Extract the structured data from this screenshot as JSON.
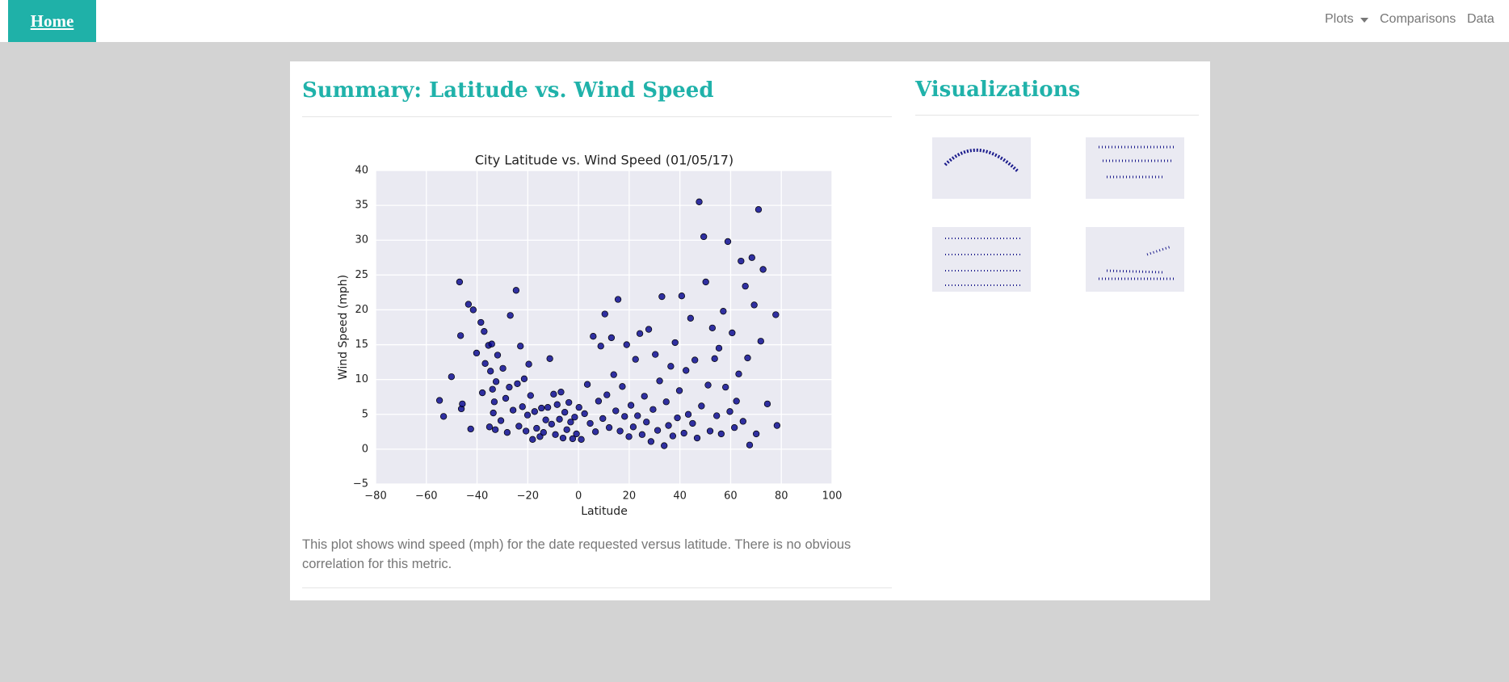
{
  "nav": {
    "brand": "Home",
    "links": [
      "Plots",
      "Comparisons",
      "Data"
    ]
  },
  "summary": {
    "heading": "Summary: Latitude vs. Wind Speed",
    "description": "This plot shows wind speed (mph) for the date requested versus latitude. There is no obvious correlation for this metric."
  },
  "sidebar": {
    "heading": "Visualizations"
  },
  "chart_data": {
    "type": "scatter",
    "title": "City Latitude vs. Wind Speed (01/05/17)",
    "x_label": "Latitude",
    "y_label": "Wind Speed (mph)",
    "color": "#00008b",
    "grid": true,
    "xlim": [
      -80,
      100
    ],
    "ylim": [
      -5,
      40
    ],
    "xticks": [
      {
        "value": -80,
        "label": "−80"
      },
      {
        "value": -60,
        "label": "−60"
      },
      {
        "value": -40,
        "label": "−40"
      },
      {
        "value": -20,
        "label": "−20"
      },
      0,
      20,
      40,
      60,
      80,
      100
    ],
    "yticks": [
      {
        "value": -5,
        "label": "−5"
      },
      0,
      5,
      10,
      15,
      20,
      25,
      30,
      35,
      40
    ],
    "x": [
      -54.8,
      -53.2,
      -50.1,
      -46.9,
      -46.5,
      -46.2,
      -45.8,
      -43.4,
      -42.5,
      -41.5,
      -40.2,
      -38.5,
      -37.9,
      -37.2,
      -36.8,
      -35.5,
      -35.1,
      -34.7,
      -34.2,
      -33.9,
      -33.6,
      -33.2,
      -32.8,
      -32.5,
      -31.9,
      -30.6,
      -29.8,
      -28.7,
      -28.1,
      -27.3,
      -26.9,
      -25.8,
      -24.6,
      -24.1,
      -23.5,
      -22.9,
      -22.1,
      -21.4,
      -20.7,
      -20.1,
      -19.6,
      -18.9,
      -18.1,
      -17.3,
      -16.5,
      -15.2,
      -14.6,
      -13.8,
      -12.9,
      -12.1,
      -11.3,
      -10.6,
      -9.8,
      -9.1,
      -8.4,
      -7.5,
      -6.9,
      -6.1,
      -5.4,
      -4.6,
      -3.8,
      -3.1,
      -2.3,
      -1.5,
      -0.8,
      0.2,
      1.1,
      2.4,
      3.5,
      4.6,
      5.8,
      6.7,
      7.9,
      8.8,
      9.6,
      10.4,
      11.2,
      12.1,
      13.0,
      13.9,
      14.7,
      15.6,
      16.4,
      17.3,
      18.2,
      19.0,
      19.9,
      20.7,
      21.6,
      22.5,
      23.3,
      24.2,
      25.1,
      26.0,
      26.8,
      27.7,
      28.6,
      29.4,
      30.3,
      31.2,
      32.0,
      32.9,
      33.8,
      34.6,
      35.5,
      36.4,
      37.2,
      38.1,
      39.0,
      39.8,
      40.7,
      41.6,
      42.4,
      43.3,
      44.2,
      45.0,
      45.9,
      46.8,
      47.6,
      48.5,
      49.4,
      50.2,
      51.1,
      51.9,
      52.8,
      53.7,
      54.5,
      55.4,
      56.3,
      57.1,
      58.0,
      58.9,
      59.7,
      60.6,
      61.5,
      62.3,
      63.2,
      64.1,
      64.9,
      65.8,
      66.7,
      67.5,
      68.4,
      69.3,
      70.1,
      71.0,
      71.9,
      72.8,
      74.5,
      77.8,
      78.3
    ],
    "values": [
      7.0,
      4.7,
      10.4,
      24.0,
      16.3,
      5.8,
      6.5,
      20.8,
      2.9,
      20.0,
      13.8,
      18.2,
      8.1,
      16.9,
      12.3,
      14.9,
      3.2,
      11.2,
      15.1,
      8.6,
      5.2,
      6.8,
      2.8,
      9.7,
      13.5,
      4.1,
      11.6,
      7.3,
      2.4,
      8.9,
      19.2,
      5.6,
      22.8,
      9.4,
      3.3,
      14.8,
      6.1,
      10.1,
      2.6,
      4.9,
      12.2,
      7.7,
      1.4,
      5.4,
      3.0,
      1.8,
      5.9,
      2.4,
      4.2,
      6.0,
      13.0,
      3.6,
      7.9,
      2.1,
      6.4,
      4.3,
      8.2,
      1.6,
      5.3,
      2.8,
      6.7,
      3.9,
      1.5,
      4.6,
      2.2,
      6.0,
      1.4,
      5.1,
      9.3,
      3.7,
      16.2,
      2.5,
      6.9,
      14.8,
      4.4,
      19.4,
      7.8,
      3.1,
      16.0,
      10.7,
      5.5,
      21.5,
      2.6,
      9.0,
      4.7,
      15.0,
      1.8,
      6.3,
      3.2,
      12.9,
      4.8,
      16.6,
      2.1,
      7.6,
      3.9,
      17.2,
      1.1,
      5.7,
      13.6,
      2.7,
      9.8,
      21.9,
      0.5,
      6.8,
      3.4,
      11.9,
      1.9,
      15.3,
      4.5,
      8.4,
      22.0,
      2.3,
      11.3,
      5.0,
      18.8,
      3.7,
      12.8,
      1.6,
      35.5,
      6.2,
      30.5,
      24.0,
      9.2,
      2.6,
      17.4,
      13.0,
      4.8,
      14.5,
      2.2,
      19.8,
      8.9,
      29.8,
      5.4,
      16.7,
      3.1,
      6.9,
      10.8,
      27.0,
      4.0,
      23.4,
      13.1,
      0.6,
      27.5,
      20.7,
      2.2,
      34.4,
      15.5,
      25.8,
      6.5,
      19.3,
      3.4
    ]
  }
}
